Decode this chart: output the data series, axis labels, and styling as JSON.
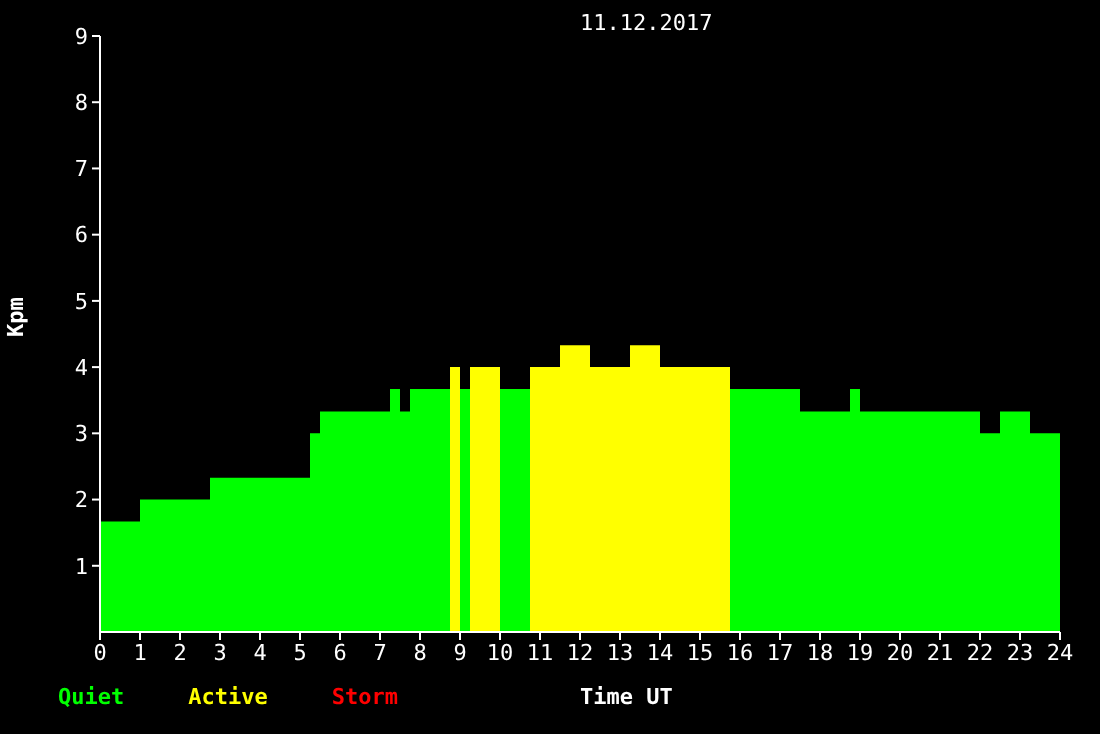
{
  "chart_data": {
    "type": "histogram",
    "title": "11.12.2017",
    "xlabel": "Time UT",
    "ylabel": "Kpm",
    "bins": [
      0,
      1,
      2.75,
      5.25,
      5.5,
      7.25,
      7.5,
      7.75,
      8.75,
      9,
      9.25,
      10,
      10.75,
      11.5,
      12.25,
      13.25,
      14,
      15.75,
      17.5,
      18.75,
      19,
      22,
      22.5,
      23.25,
      24
    ],
    "series": [
      {
        "name": "Quiet",
        "color": "#00ff00",
        "values": [
          1.67,
          2,
          2.33,
          3,
          3.33,
          3.67,
          3.33,
          3.67,
          null,
          3.67,
          null,
          3.67,
          null,
          null,
          null,
          null,
          null,
          3.67,
          3.33,
          3.67,
          3.33,
          3,
          3.33,
          3
        ]
      },
      {
        "name": "Active",
        "color": "#ffff00",
        "values": [
          null,
          null,
          null,
          null,
          null,
          null,
          null,
          null,
          4,
          null,
          4,
          null,
          4,
          4.33,
          4,
          4.33,
          4,
          null,
          null,
          null,
          null,
          null,
          null,
          null
        ]
      }
    ],
    "annotations": [
      "Storm"
    ],
    "xlim": [
      0,
      24
    ],
    "xticks": [
      0,
      1,
      2,
      3,
      4,
      5,
      6,
      7,
      8,
      9,
      10,
      11,
      12,
      13,
      14,
      15,
      16,
      17,
      18,
      19,
      20,
      21,
      22,
      23,
      24
    ],
    "ylim": [
      0,
      9
    ],
    "yticks": [
      1,
      2,
      3,
      4,
      5,
      6,
      7,
      8,
      9
    ],
    "legend": "bottom left"
  }
}
